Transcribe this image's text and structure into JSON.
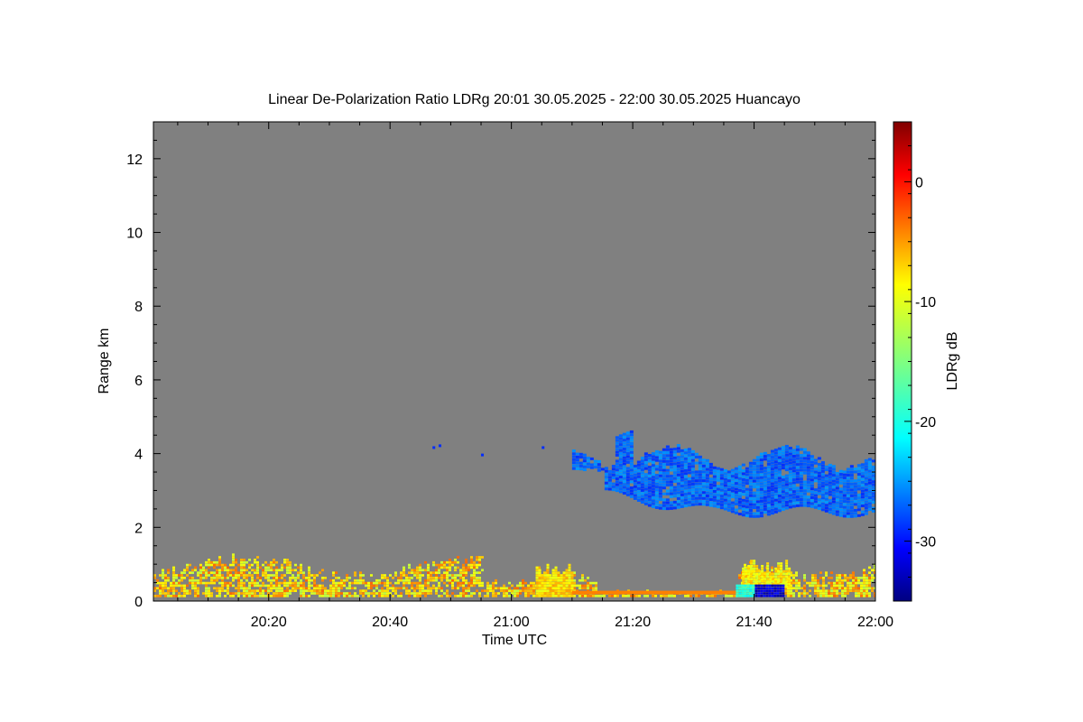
{
  "chart_data": {
    "type": "heatmap",
    "title": "Linear De-Polarization Ratio LDRg   20:01 30.05.2025 - 22:00 30.05.2025 Huancayo",
    "xlabel": "Time UTC",
    "ylabel": "Range km",
    "xlim": [
      "20:01",
      "22:00"
    ],
    "ylim": [
      0,
      13
    ],
    "x_ticks": [
      "20:20",
      "20:40",
      "21:00",
      "21:20",
      "21:40",
      "22:00"
    ],
    "y_ticks": [
      "0",
      "2",
      "4",
      "6",
      "8",
      "10",
      "12"
    ],
    "colorbar": {
      "label": "LDRg dB",
      "range": [
        -35,
        5
      ],
      "ticks": [
        "0",
        "-10",
        "-20",
        "-30"
      ],
      "colormap": "jet"
    },
    "background_color": "#808080",
    "features": [
      {
        "description": "boundary layer returns",
        "time_range": [
          "20:01",
          "22:00"
        ],
        "range_km": [
          0.1,
          1.1
        ],
        "ldr_db_range": [
          -12,
          -3
        ]
      },
      {
        "description": "mid-level cloud layer",
        "time_range": [
          "21:10",
          "22:00"
        ],
        "range_km": [
          2.3,
          4.7
        ],
        "ldr_db_range": [
          -30,
          -25
        ]
      },
      {
        "description": "low-level cloud patch",
        "time_range": [
          "21:04",
          "21:10"
        ],
        "range_km": [
          0.1,
          1.1
        ],
        "ldr_db_range": [
          -12,
          -5
        ]
      },
      {
        "description": "near-surface low LDR",
        "time_range": [
          "21:37",
          "21:45"
        ],
        "range_km": [
          0.1,
          0.4
        ],
        "ldr_db_range": [
          -35,
          -20
        ]
      }
    ]
  }
}
